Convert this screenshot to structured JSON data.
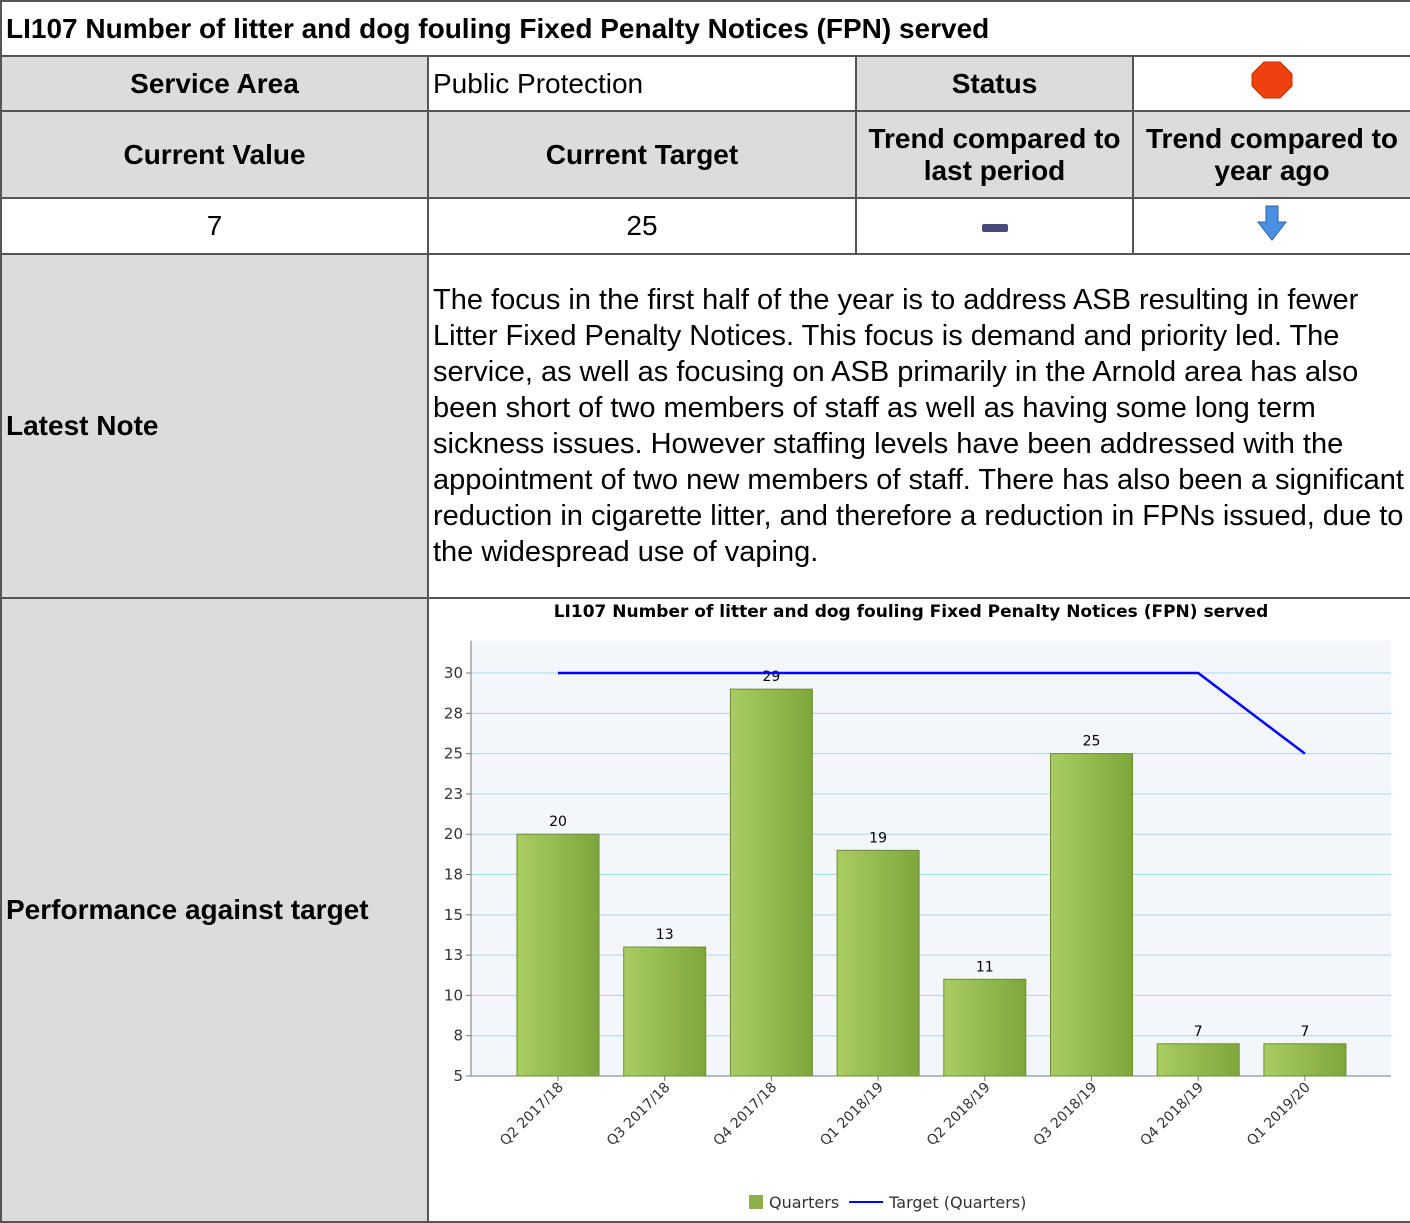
{
  "header": {
    "title": "LI107  Number  of litter and dog fouling Fixed Penalty Notices (FPN) served"
  },
  "details": {
    "service_area_label": "Service Area",
    "service_area": "Public Protection",
    "status_label": "Status"
  },
  "summary": {
    "headers": [
      "Current Value",
      "Current Target",
      "Trend compared to last period",
      "Trend compared to year ago"
    ],
    "values": [
      7,
      25
    ]
  },
  "note": {
    "label": "Latest Note",
    "text": "The focus in the first half of the year is to address ASB resulting in fewer Litter Fixed Penalty Notices. This focus is demand and priority led. The service, as well as focusing on ASB primarily in the Arnold area has also been short of two members of staff as well as having some long term sickness issues. However staffing levels have been addressed with the appointment of two new members of staff. There has also been a significant reduction in cigarette litter, and therefore a reduction in FPNs issued, due to the widespread use of vaping."
  },
  "performance": {
    "label": "Performance against target"
  },
  "chart_data": {
    "type": "bar",
    "title": "LI107  Number  of litter and dog fouling Fixed Penalty Notices (FPN) served",
    "categories": [
      "Q2 2017/18",
      "Q3 2017/18",
      "Q4 2017/18",
      "Q1 2018/19",
      "Q2 2018/19",
      "Q3 2018/19",
      "Q4 2018/19",
      "Q1 2019/20"
    ],
    "series": [
      {
        "name": "Quarters",
        "type": "bar",
        "color": "#8db04a",
        "values": [
          20,
          13,
          29,
          19,
          11,
          25,
          7,
          7
        ]
      },
      {
        "name": "Target (Quarters)",
        "type": "line",
        "color": "#0000ff",
        "values": [
          30,
          30,
          30,
          30,
          30,
          30,
          30,
          25
        ]
      }
    ],
    "ylim": [
      5,
      32
    ],
    "yticks": [
      5,
      {
        "value": 7.5,
        "label": "8"
      },
      10,
      {
        "value": 12.5,
        "label": "13"
      },
      15,
      {
        "value": 17.5,
        "label": "18"
      },
      20,
      {
        "value": 22.5,
        "label": "23"
      },
      25,
      {
        "value": 27.5,
        "label": "28"
      },
      30
    ],
    "grid": true,
    "legend": "bottom"
  }
}
